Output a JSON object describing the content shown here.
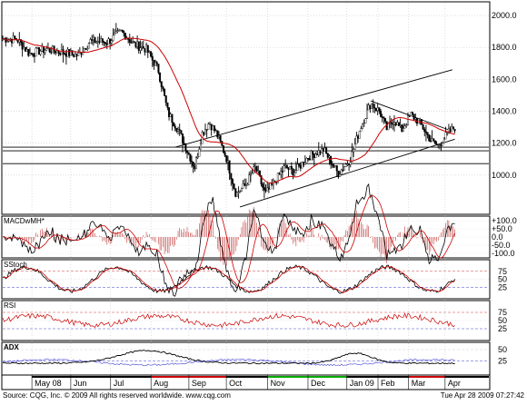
{
  "chart_data": {
    "type": "candlestick-with-indicators",
    "grid": true,
    "panels": [
      {
        "name": "price",
        "yaxis_ticks": [
          "2000.0",
          "1800.0",
          "1600.0",
          "1400.0",
          "1200.0",
          "1000.0"
        ],
        "ylim": [
          760,
          2080
        ],
        "moving_average_color": "#cc0000",
        "price_color": "#000000",
        "horizontal_levels": [
          1175,
          1152,
          1072
        ],
        "trend_channel": {
          "upper": [
            [
              0.355,
              1175
            ],
            [
              0.925,
              1660
            ]
          ],
          "lower": [
            [
              0.488,
              800
            ],
            [
              0.93,
              1225
            ]
          ]
        },
        "wedge": {
          "from": [
            0.757,
            1465
          ],
          "to": [
            0.925,
            1275
          ]
        },
        "series_keyframes": [
          [
            0.0,
            1855
          ],
          [
            0.03,
            1850
          ],
          [
            0.055,
            1760
          ],
          [
            0.09,
            1790
          ],
          [
            0.125,
            1770
          ],
          [
            0.155,
            1750
          ],
          [
            0.18,
            1840
          ],
          [
            0.215,
            1835
          ],
          [
            0.245,
            1900
          ],
          [
            0.27,
            1820
          ],
          [
            0.295,
            1790
          ],
          [
            0.32,
            1660
          ],
          [
            0.34,
            1390
          ],
          [
            0.36,
            1290
          ],
          [
            0.38,
            1150
          ],
          [
            0.395,
            1050
          ],
          [
            0.41,
            1260
          ],
          [
            0.425,
            1330
          ],
          [
            0.44,
            1260
          ],
          [
            0.46,
            1110
          ],
          [
            0.48,
            880
          ],
          [
            0.5,
            940
          ],
          [
            0.52,
            1050
          ],
          [
            0.54,
            880
          ],
          [
            0.56,
            960
          ],
          [
            0.58,
            1050
          ],
          [
            0.6,
            1020
          ],
          [
            0.63,
            1120
          ],
          [
            0.66,
            1160
          ],
          [
            0.69,
            1010
          ],
          [
            0.715,
            1100
          ],
          [
            0.735,
            1290
          ],
          [
            0.757,
            1450
          ],
          [
            0.775,
            1400
          ],
          [
            0.79,
            1290
          ],
          [
            0.805,
            1350
          ],
          [
            0.82,
            1280
          ],
          [
            0.84,
            1380
          ],
          [
            0.86,
            1320
          ],
          [
            0.88,
            1220
          ],
          [
            0.895,
            1180
          ],
          [
            0.915,
            1260
          ],
          [
            0.93,
            1300
          ]
        ]
      },
      {
        "name": "MACD",
        "label": "MACDwMH*",
        "yaxis_ticks": [
          "+100.0",
          "+50.0",
          "0.0",
          "-50.0",
          "-100.0"
        ]
      },
      {
        "name": "SStoch",
        "label": "SStoch",
        "yaxis_ticks": [
          "75",
          "50",
          "25"
        ]
      },
      {
        "name": "RSI",
        "label": "RSI",
        "yaxis_ticks": [
          "75",
          "50",
          "25"
        ]
      },
      {
        "name": "ADX",
        "label": "ADX",
        "yaxis_ticks": [
          "50",
          "25"
        ]
      }
    ],
    "x_labels": [
      "May 08",
      "Jun",
      "Jul",
      "Aug",
      "Sep",
      "Oct",
      "Nov",
      "Dec",
      "Jan 09",
      "Feb",
      "Mar",
      "Apr"
    ],
    "footer_left": "Source: CQG, Inc. © 2009 All rights reserved worldwide. www.cqg.com",
    "footer_right": "Tue Apr 28 2009 07:27:42"
  }
}
